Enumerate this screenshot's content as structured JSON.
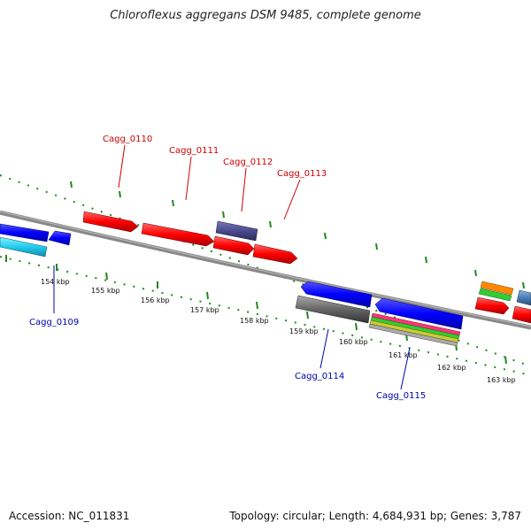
{
  "title": "Chloroflexus aggregans DSM 9485, complete genome",
  "footer": {
    "accession": "Accession: NC_011831",
    "summary": "Topology: circular; Length: 4,684,931 bp; Genes: 3,787"
  },
  "colors": {
    "backbone": "#888888",
    "forward_label": "#cc0000",
    "reverse_label": "#0000aa",
    "tick": "#228822"
  },
  "kbp_ticks": [
    "154 kbp",
    "155 kbp",
    "156 kbp",
    "157 kbp",
    "158 kbp",
    "159 kbp",
    "160 kbp",
    "161 kbp",
    "162 kbp",
    "163 kbp"
  ],
  "gene_labels_forward": [
    "Cagg_0110",
    "Cagg_0111",
    "Cagg_0112",
    "Cagg_0113"
  ],
  "gene_labels_reverse": [
    "Cagg_0109",
    "Cagg_0114",
    "Cagg_0115"
  ],
  "feature_colors": {
    "cds_forward": "#ff0000",
    "cds_reverse": "#0000ff",
    "rna_reverse": "#22ccee",
    "cds_purple": "#4a4a8c",
    "cds_gray": "#666666",
    "cds_steel": "#4a7fb5",
    "stack_orange": "#ff8800",
    "stack_green": "#33cc33",
    "stack_pink": "#ff3377",
    "stack_yellow": "#cccc33"
  }
}
